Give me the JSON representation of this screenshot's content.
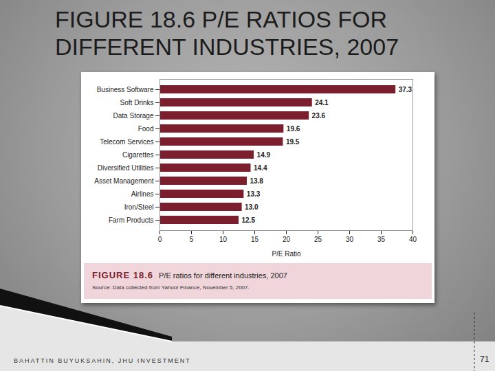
{
  "slide": {
    "title": "FIGURE 18.6 P/E RATIOS FOR DIFFERENT INDUSTRIES, 2007",
    "footer": "BAHATTIN BUYUKSAHIN, JHU INVESTMENT",
    "page": "71"
  },
  "chart_data": {
    "type": "bar",
    "orientation": "horizontal",
    "caption_label": "FIGURE 18.6",
    "caption": "P/E ratios for different industries, 2007",
    "source": "Source: Data collected from Yahoo! Finance, November 5, 2007.",
    "xlabel": "P/E Ratio",
    "categories": [
      "Business Software",
      "Soft Drinks",
      "Data Storage",
      "Food",
      "Telecom Services",
      "Cigarettes",
      "Diversified Utilities",
      "Asset Management",
      "Airlines",
      "Iron/Steel",
      "Farm Products"
    ],
    "values": [
      37.3,
      24.1,
      23.6,
      19.6,
      19.5,
      14.9,
      14.4,
      13.8,
      13.3,
      13.0,
      12.5
    ],
    "value_labels": [
      "37.3",
      "24.1",
      "23.6",
      "19.6",
      "19.5",
      "14.9",
      "14.4",
      "13.8",
      "13.3",
      "13.0",
      "12.5"
    ],
    "color": "#7b1e2e",
    "xlim": [
      0,
      40
    ],
    "xticks": [
      0,
      5,
      10,
      15,
      20,
      25,
      30,
      35,
      40
    ],
    "grid": false,
    "data_labels": true
  }
}
